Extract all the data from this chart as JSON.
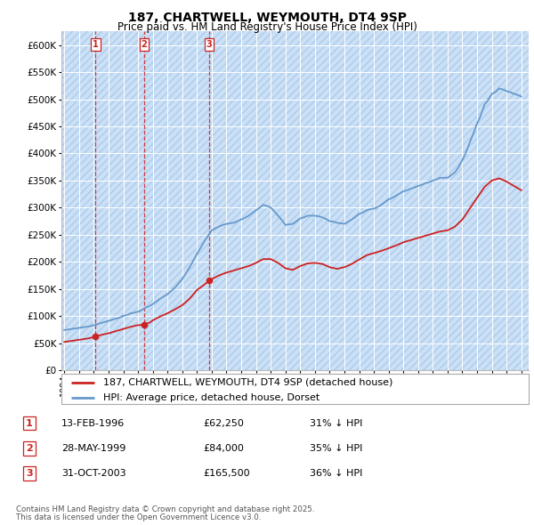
{
  "title": "187, CHARTWELL, WEYMOUTH, DT4 9SP",
  "subtitle": "Price paid vs. HM Land Registry's House Price Index (HPI)",
  "ylim": [
    0,
    625000
  ],
  "yticks": [
    0,
    50000,
    100000,
    150000,
    200000,
    250000,
    300000,
    350000,
    400000,
    450000,
    500000,
    550000,
    600000
  ],
  "xlim": [
    1993.8,
    2025.5
  ],
  "background_color": "#ffffff",
  "plot_bg_color": "#cce0f5",
  "hatch_color": "#aaccee",
  "grid_color": "#ffffff",
  "hpi_color": "#6699cc",
  "price_color": "#cc2222",
  "vline_color": "#cc2222",
  "legend_label_price": "187, CHARTWELL, WEYMOUTH, DT4 9SP (detached house)",
  "legend_label_hpi": "HPI: Average price, detached house, Dorset",
  "transactions": [
    {
      "num": 1,
      "date_x": 1996.12,
      "price": 62250
    },
    {
      "num": 2,
      "date_x": 1999.41,
      "price": 84000
    },
    {
      "num": 3,
      "date_x": 2003.83,
      "price": 165500
    }
  ],
  "table_rows": [
    {
      "num": 1,
      "date": "13-FEB-1996",
      "price": "£62,250",
      "pct": "31% ↓ HPI"
    },
    {
      "num": 2,
      "date": "28-MAY-1999",
      "price": "£84,000",
      "pct": "35% ↓ HPI"
    },
    {
      "num": 3,
      "date": "31-OCT-2003",
      "price": "£165,500",
      "pct": "36% ↓ HPI"
    }
  ],
  "footer_line1": "Contains HM Land Registry data © Crown copyright and database right 2025.",
  "footer_line2": "This data is licensed under the Open Government Licence v3.0.",
  "hpi_x": [
    1994.0,
    1994.25,
    1994.5,
    1994.75,
    1995.0,
    1995.25,
    1995.5,
    1995.75,
    1996.0,
    1996.25,
    1996.5,
    1996.75,
    1997.0,
    1997.25,
    1997.5,
    1997.75,
    1998.0,
    1998.25,
    1998.5,
    1998.75,
    1999.0,
    1999.25,
    1999.5,
    1999.75,
    2000.0,
    2000.25,
    2000.5,
    2000.75,
    2001.0,
    2001.25,
    2001.5,
    2001.75,
    2002.0,
    2002.25,
    2002.5,
    2002.75,
    2003.0,
    2003.25,
    2003.5,
    2003.75,
    2004.0,
    2004.25,
    2004.5,
    2004.75,
    2005.0,
    2005.25,
    2005.5,
    2005.75,
    2006.0,
    2006.25,
    2006.5,
    2006.75,
    2007.0,
    2007.25,
    2007.5,
    2007.75,
    2008.0,
    2008.25,
    2008.5,
    2008.75,
    2009.0,
    2009.25,
    2009.5,
    2009.75,
    2010.0,
    2010.25,
    2010.5,
    2010.75,
    2011.0,
    2011.25,
    2011.5,
    2011.75,
    2012.0,
    2012.25,
    2012.5,
    2012.75,
    2013.0,
    2013.25,
    2013.5,
    2013.75,
    2014.0,
    2014.25,
    2014.5,
    2014.75,
    2015.0,
    2015.25,
    2015.5,
    2015.75,
    2016.0,
    2016.25,
    2016.5,
    2016.75,
    2017.0,
    2017.25,
    2017.5,
    2017.75,
    2018.0,
    2018.25,
    2018.5,
    2018.75,
    2019.0,
    2019.25,
    2019.5,
    2019.75,
    2020.0,
    2020.25,
    2020.5,
    2020.75,
    2021.0,
    2021.25,
    2021.5,
    2021.75,
    2022.0,
    2022.25,
    2022.5,
    2022.75,
    2023.0,
    2023.25,
    2023.5,
    2023.75,
    2024.0,
    2024.25,
    2024.5,
    2024.75,
    2025.0
  ],
  "hpi_y": [
    74000,
    75000,
    76000,
    77000,
    78000,
    79000,
    80000,
    81000,
    83000,
    85000,
    87000,
    89000,
    91000,
    93000,
    95000,
    97000,
    100000,
    102000,
    105000,
    106000,
    108000,
    111000,
    115000,
    118000,
    122000,
    127000,
    132000,
    136000,
    140000,
    146000,
    152000,
    160000,
    168000,
    179000,
    190000,
    202000,
    215000,
    226000,
    238000,
    248000,
    258000,
    262000,
    265000,
    268000,
    270000,
    271000,
    272000,
    275000,
    278000,
    281000,
    285000,
    290000,
    295000,
    300000,
    305000,
    303000,
    300000,
    293000,
    285000,
    277000,
    268000,
    269000,
    270000,
    275000,
    280000,
    282000,
    285000,
    285000,
    285000,
    284000,
    282000,
    279000,
    275000,
    274000,
    272000,
    271000,
    270000,
    274000,
    278000,
    283000,
    288000,
    291000,
    295000,
    297000,
    298000,
    301000,
    305000,
    310000,
    315000,
    318000,
    322000,
    326000,
    330000,
    332000,
    335000,
    337000,
    340000,
    342000,
    345000,
    347000,
    350000,
    352000,
    355000,
    355000,
    355000,
    360000,
    365000,
    375000,
    388000,
    402000,
    420000,
    437000,
    455000,
    470000,
    490000,
    498000,
    510000,
    513000,
    520000,
    518000,
    515000,
    513000,
    510000,
    508000,
    505000
  ],
  "price_x": [
    1994.0,
    1994.5,
    1995.0,
    1995.5,
    1996.0,
    1996.12,
    1996.5,
    1997.0,
    1997.5,
    1998.0,
    1998.5,
    1999.0,
    1999.41,
    1999.8,
    2000.0,
    2000.5,
    2001.0,
    2001.5,
    2002.0,
    2002.5,
    2003.0,
    2003.5,
    2003.83,
    2004.0,
    2004.5,
    2005.0,
    2005.5,
    2006.0,
    2006.5,
    2007.0,
    2007.5,
    2008.0,
    2008.5,
    2009.0,
    2009.5,
    2010.0,
    2010.5,
    2011.0,
    2011.5,
    2012.0,
    2012.5,
    2013.0,
    2013.5,
    2014.0,
    2014.5,
    2015.0,
    2015.5,
    2016.0,
    2016.5,
    2017.0,
    2017.5,
    2018.0,
    2018.5,
    2019.0,
    2019.5,
    2020.0,
    2020.5,
    2021.0,
    2021.5,
    2022.0,
    2022.5,
    2023.0,
    2023.5,
    2024.0,
    2024.5,
    2025.0
  ],
  "price_y": [
    52000,
    54000,
    56000,
    58000,
    61000,
    62250,
    65000,
    68000,
    72000,
    76000,
    80000,
    83000,
    84000,
    88000,
    92000,
    99000,
    105000,
    112000,
    120000,
    132000,
    148000,
    158000,
    165500,
    168000,
    175000,
    180000,
    184000,
    188000,
    192000,
    198000,
    205000,
    205000,
    198000,
    188000,
    185000,
    192000,
    197000,
    198000,
    196000,
    190000,
    187000,
    190000,
    196000,
    204000,
    212000,
    216000,
    220000,
    225000,
    230000,
    236000,
    240000,
    244000,
    248000,
    252000,
    256000,
    258000,
    265000,
    278000,
    298000,
    318000,
    338000,
    350000,
    354000,
    348000,
    340000,
    332000
  ]
}
